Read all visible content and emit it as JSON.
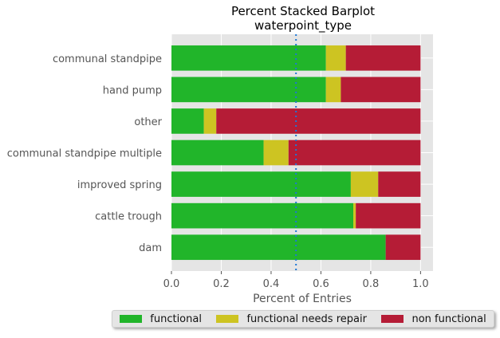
{
  "chart_data": {
    "type": "bar",
    "orientation": "horizontal",
    "stacked": "percent",
    "title": "Percent Stacked Barplot",
    "subtitle": "waterpoint_type",
    "xlabel": "Percent of Entries",
    "ylabel": "",
    "xlim": [
      0,
      1.05
    ],
    "xticks": [
      "0.0",
      "0.2",
      "0.4",
      "0.6",
      "0.8",
      "1.0"
    ],
    "grid": true,
    "reference_line": 0.5,
    "legend_position": "bottom",
    "categories": [
      "communal standpipe",
      "hand pump",
      "other",
      "communal standpipe multiple",
      "improved spring",
      "cattle trough",
      "dam"
    ],
    "series": [
      {
        "name": "functional",
        "color": "#21b52a",
        "values": [
          0.62,
          0.62,
          0.13,
          0.37,
          0.72,
          0.73,
          0.86
        ]
      },
      {
        "name": "functional needs repair",
        "color": "#cdc422",
        "values": [
          0.08,
          0.06,
          0.05,
          0.1,
          0.11,
          0.01,
          0.0
        ]
      },
      {
        "name": "non functional",
        "color": "#b51c36",
        "values": [
          0.3,
          0.32,
          0.82,
          0.53,
          0.17,
          0.26,
          0.14
        ]
      }
    ]
  }
}
